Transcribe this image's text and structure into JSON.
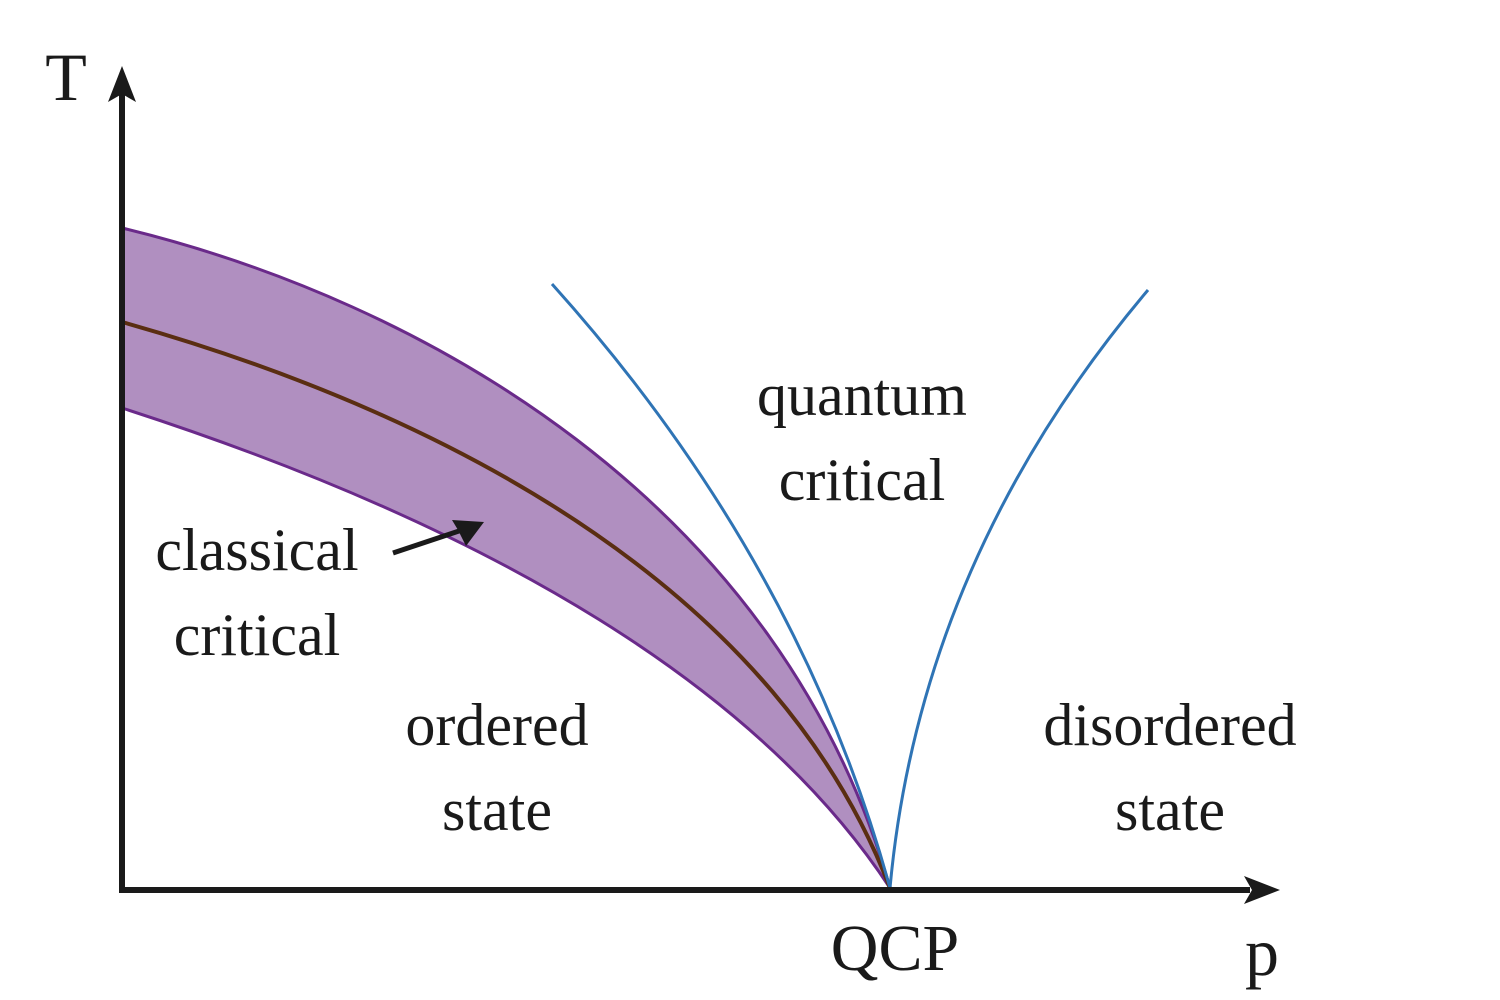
{
  "diagram": {
    "axes": {
      "y_label": "T",
      "x_label": "p"
    },
    "point_label": "QCP",
    "regions": {
      "classical": {
        "line1": "classical",
        "line2": "critical"
      },
      "quantum": {
        "line1": "quantum",
        "line2": "critical"
      },
      "ordered": {
        "line1": "ordered",
        "line2": "state"
      },
      "disordered": {
        "line1": "disordered",
        "line2": "state"
      }
    },
    "colors": {
      "axis": "#1a1a1a",
      "band_fill": "#b08fc0",
      "band_edge": "#6a2a8a",
      "transition_line": "#5a2e12",
      "crossover_lines": "#2f74b5",
      "text": "#1a1a1a"
    }
  }
}
